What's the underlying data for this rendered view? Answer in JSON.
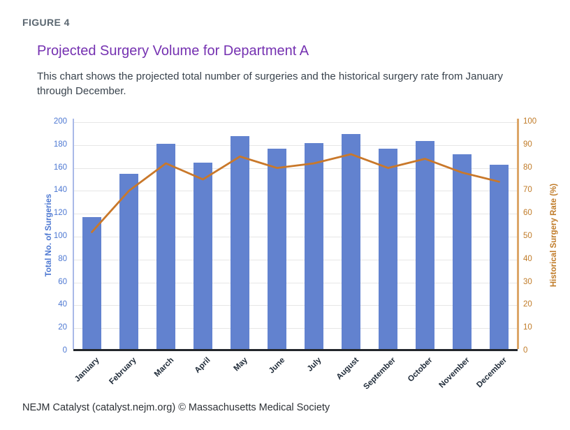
{
  "figure_label": "FIGURE 4",
  "title": "Projected Surgery Volume for Department A",
  "subtitle": "This chart shows the projected total number of surgeries and the historical surgery rate from January through December.",
  "footer": "NEJM Catalyst (catalyst.nejm.org) © Massachusetts Medical Society",
  "chart_data": {
    "type": "bar",
    "subtype": "bar-with-line-overlay",
    "title": "Projected Surgery Volume for Department A",
    "categories": [
      "January",
      "February",
      "March",
      "April",
      "May",
      "June",
      "July",
      "August",
      "September",
      "October",
      "November",
      "December"
    ],
    "series": [
      {
        "name": "Total No. of Surgeries",
        "type": "bar",
        "axis": "left",
        "color": "#6282cf",
        "values": [
          115,
          153,
          179,
          163,
          186,
          175,
          180,
          188,
          175,
          182,
          170,
          161
        ]
      },
      {
        "name": "Historical Surgery Rate (%)",
        "type": "line",
        "axis": "right",
        "color": "#c9782a",
        "values": [
          52,
          70,
          82,
          75,
          85,
          80,
          82,
          86,
          80,
          84,
          78,
          74
        ]
      }
    ],
    "left_axis": {
      "label": "Total No. of Surgeries",
      "min": 0,
      "max": 200,
      "step": 20,
      "ticks": [
        200,
        180,
        160,
        140,
        120,
        100,
        80,
        60,
        40,
        20,
        0
      ],
      "color": "#4d78d2"
    },
    "right_axis": {
      "label": "Historical Surgery Rate (%)",
      "min": 0,
      "max": 100,
      "step": 10,
      "ticks": [
        100,
        90,
        80,
        70,
        60,
        50,
        40,
        30,
        20,
        10,
        0
      ],
      "color": "#c07b28"
    },
    "grid": true,
    "legend": false
  },
  "colors": {
    "title": "#7531b1",
    "figure_label": "#5b6771",
    "bar": "#6282cf",
    "line": "#c9782a",
    "left_axis_text": "#4d78d2",
    "right_axis_text": "#c07b28",
    "gridline": "#e6e6e6",
    "baseline": "#22262b",
    "month_labels": "#1e2a38",
    "background": "#ffffff"
  }
}
